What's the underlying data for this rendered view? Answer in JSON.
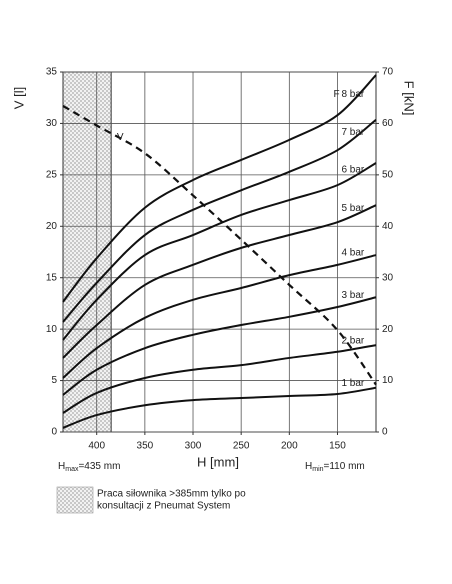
{
  "chart_data": {
    "type": "line",
    "x_label": "H [mm]",
    "y_label": "V [l]",
    "y2_label": "F [kN]",
    "force_symbol": "F",
    "x": [
      435,
      400,
      350,
      300,
      250,
      200,
      150,
      110
    ],
    "xlim": [
      435,
      110
    ],
    "xticks": [
      400,
      350,
      300,
      250,
      200,
      150
    ],
    "ylim": [
      0,
      35
    ],
    "yticks": [
      0,
      5,
      10,
      15,
      20,
      25,
      30,
      35
    ],
    "y2lim": [
      0,
      70
    ],
    "y2ticks": [
      0,
      10,
      20,
      30,
      40,
      50,
      60,
      70
    ],
    "grid": true,
    "shaded_region": [
      435,
      385
    ],
    "hmax_label": {
      "main": "H",
      "sub": "max",
      "rest": "=435 mm"
    },
    "hmin_label": {
      "main": "H",
      "sub": "min",
      "rest": "=110 mm"
    },
    "note": [
      "Praca siłownika >385mm tylko po",
      "konsultacji z Pneumat System"
    ],
    "series": [
      {
        "name": "V",
        "color": "#111111",
        "dashed": true,
        "axis": "y",
        "values": [
          31.7,
          29.8,
          27.1,
          23,
          18.7,
          14.3,
          9.9,
          4.6
        ]
      },
      {
        "name": "8 bar",
        "color": "#111111",
        "axis": "y2",
        "values": [
          25.3,
          33.8,
          43.6,
          49,
          52.9,
          56.8,
          61.6,
          69.4
        ]
      },
      {
        "name": "7 bar",
        "color": "#111111",
        "axis": "y2",
        "values": [
          21.4,
          29,
          38.3,
          43.2,
          47,
          50.6,
          54.8,
          60.7
        ]
      },
      {
        "name": "6 bar",
        "color": "#111111",
        "axis": "y2",
        "values": [
          17.9,
          25.7,
          34.4,
          38.3,
          42.2,
          45.1,
          48,
          52.3
        ]
      },
      {
        "name": "5 bar",
        "color": "#111111",
        "axis": "y2",
        "values": [
          14.4,
          20.8,
          28.6,
          32.5,
          35.8,
          38.3,
          40.8,
          44.1
        ]
      },
      {
        "name": "4 bar",
        "color": "#111111",
        "axis": "y2",
        "values": [
          10.5,
          16.3,
          22.2,
          25.7,
          28,
          30.5,
          32.5,
          34.4
        ]
      },
      {
        "name": "3 bar",
        "color": "#111111",
        "axis": "y2",
        "values": [
          7.2,
          12.1,
          16.3,
          18.9,
          20.8,
          22.4,
          24.3,
          26.2
        ]
      },
      {
        "name": "2 bar",
        "color": "#111111",
        "axis": "y2",
        "values": [
          3.7,
          7.6,
          10.5,
          12.1,
          13,
          14.4,
          15.6,
          16.9
        ]
      },
      {
        "name": "1 bar",
        "color": "#111111",
        "axis": "y2",
        "values": [
          0.8,
          3.3,
          5.2,
          6.2,
          6.6,
          7,
          7.4,
          8.6
        ]
      }
    ]
  }
}
